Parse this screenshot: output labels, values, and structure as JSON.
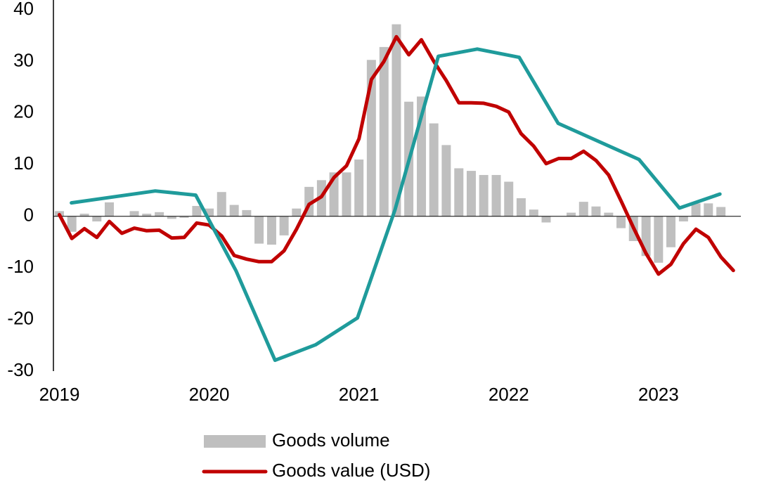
{
  "chart_data": {
    "type": "combo",
    "x": [
      2019,
      2019.083,
      2019.167,
      2019.25,
      2019.333,
      2019.417,
      2019.5,
      2019.583,
      2019.667,
      2019.75,
      2019.833,
      2019.917,
      2020,
      2020.083,
      2020.167,
      2020.25,
      2020.333,
      2020.417,
      2020.5,
      2020.583,
      2020.667,
      2020.75,
      2020.833,
      2020.917,
      2021,
      2021.083,
      2021.167,
      2021.25,
      2021.333,
      2021.417,
      2021.5,
      2021.583,
      2021.667,
      2021.75,
      2021.833,
      2021.917,
      2022,
      2022.083,
      2022.167,
      2022.25,
      2022.333,
      2022.417,
      2022.5,
      2022.583,
      2022.667,
      2022.75,
      2022.833,
      2022.917,
      2023,
      2023.083,
      2023.167,
      2023.25,
      2023.333,
      2023.417,
      2023.5
    ],
    "series": [
      {
        "name": "Goods volume",
        "type": "bar",
        "color": "#bfbfbf",
        "values": [
          1,
          -3,
          0.5,
          -1,
          2.7,
          0,
          1,
          0.5,
          0.8,
          -0.5,
          -0.3,
          2,
          1.5,
          4.7,
          2.2,
          1.2,
          -5.3,
          -5.5,
          -3.7,
          1.5,
          5.7,
          7,
          8.5,
          8.5,
          11,
          30.3,
          32.8,
          37.2,
          22.2,
          23.2,
          18,
          13.8,
          9.3,
          8.8,
          8,
          8,
          6.7,
          3.5,
          1.3,
          -1.2,
          0,
          0.7,
          2.8,
          1.9,
          0.7,
          -2.3,
          -4.8,
          -7.7,
          -9,
          -6,
          -1,
          2.5,
          2.5,
          1.8,
          null
        ]
      },
      {
        "name": "Goods value (USD)",
        "type": "line",
        "color": "#c00000",
        "values": [
          0.3,
          -4.3,
          -2.4,
          -4.1,
          -1,
          -3.3,
          -2.3,
          -2.8,
          -2.7,
          -4.2,
          -4.1,
          -1.3,
          -1.7,
          -3.8,
          -7.6,
          -8.3,
          -8.8,
          -8.8,
          -6.7,
          -2.5,
          2.3,
          3.8,
          7.5,
          9.8,
          15,
          26.5,
          30,
          34.8,
          31.3,
          34.2,
          30,
          26.3,
          22,
          22,
          21.9,
          21.3,
          20.2,
          16,
          13.6,
          10.2,
          11.2,
          11.2,
          12.6,
          10.8,
          8,
          3,
          -2.2,
          -7.2,
          -11.2,
          -9.3,
          -5.3,
          -2.5,
          -4.1,
          -7.9,
          -10.5
        ]
      },
      {
        "type": "line",
        "color": "#1f9b9b",
        "x": [
          2019.08,
          2019.64,
          2019.91,
          2020.18,
          2020.44,
          2020.71,
          2020.99,
          2021.24,
          2021.53,
          2021.79,
          2022.07,
          2022.33,
          2022.87,
          2023.14,
          2023.41
        ],
        "values": [
          2.6,
          4.9,
          4.1,
          -10.6,
          -27.9,
          -24.9,
          -19.7,
          1.2,
          31,
          32.4,
          30.8,
          18,
          11,
          1.6,
          4.3
        ]
      }
    ],
    "xlim": [
      2018.96,
      2023.55
    ],
    "xticks": [
      2019,
      2020,
      2021,
      2022,
      2023
    ],
    "ylim": [
      -30,
      40
    ],
    "yticks": [
      -30,
      -20,
      -10,
      0,
      10,
      20,
      30,
      40
    ]
  }
}
